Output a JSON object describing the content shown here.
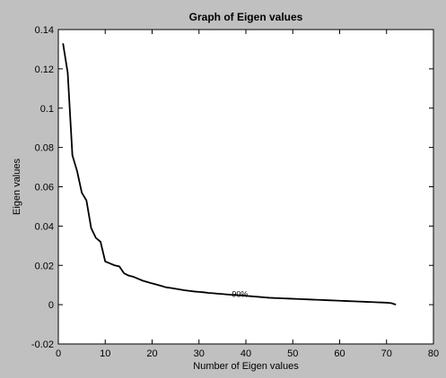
{
  "chart_data": {
    "type": "line",
    "title": "Graph of Eigen values",
    "xlabel": "Number of Eigen values",
    "ylabel": "Eigen values",
    "xlim": [
      0,
      80
    ],
    "ylim": [
      -0.02,
      0.14
    ],
    "x_ticks": [
      0,
      10,
      20,
      30,
      40,
      50,
      60,
      70,
      80
    ],
    "y_ticks": [
      -0.02,
      0,
      0.02,
      0.04,
      0.06,
      0.08,
      0.1,
      0.12,
      0.14
    ],
    "x_tick_labels": [
      "0",
      "10",
      "20",
      "30",
      "40",
      "50",
      "60",
      "70",
      "80"
    ],
    "y_tick_labels": [
      "-0.02",
      "0",
      "0.02",
      "0.04",
      "0.06",
      "0.08",
      "0.1",
      "0.12",
      "0.14"
    ],
    "grid": false,
    "series": [
      {
        "color": "#000000",
        "x": [
          1,
          2,
          3,
          4,
          5,
          6,
          7,
          8,
          9,
          10,
          11,
          12,
          13,
          14,
          15,
          16,
          17,
          18,
          19,
          20,
          21,
          22,
          23,
          24,
          25,
          26,
          27,
          28,
          29,
          30,
          31,
          32,
          33,
          34,
          35,
          36,
          37,
          38,
          39,
          40,
          41,
          42,
          43,
          44,
          45,
          46,
          47,
          48,
          49,
          50,
          51,
          52,
          53,
          54,
          55,
          56,
          57,
          58,
          59,
          60,
          61,
          62,
          63,
          64,
          65,
          66,
          67,
          68,
          69,
          70,
          71,
          72
        ],
        "y": [
          0.133,
          0.118,
          0.076,
          0.068,
          0.057,
          0.053,
          0.039,
          0.034,
          0.032,
          0.022,
          0.021,
          0.02,
          0.0195,
          0.016,
          0.0148,
          0.0142,
          0.0132,
          0.0122,
          0.0115,
          0.0108,
          0.0102,
          0.0095,
          0.0088,
          0.0085,
          0.0081,
          0.0077,
          0.0073,
          0.007,
          0.0067,
          0.0065,
          0.0063,
          0.006,
          0.0058,
          0.0056,
          0.0054,
          0.0052,
          0.005,
          0.0049,
          0.0047,
          0.0045,
          0.0043,
          0.0041,
          0.0039,
          0.0037,
          0.0035,
          0.0034,
          0.0033,
          0.0032,
          0.0031,
          0.003,
          0.0029,
          0.0028,
          0.0027,
          0.0026,
          0.0025,
          0.0024,
          0.0023,
          0.0022,
          0.0021,
          0.002,
          0.0019,
          0.0018,
          0.0017,
          0.0016,
          0.0015,
          0.0014,
          0.0013,
          0.0012,
          0.0011,
          0.001,
          0.0008,
          0.0
        ]
      }
    ],
    "annotations": [
      {
        "text": "90%",
        "x": 37,
        "y": 0.0053
      }
    ]
  },
  "colors": {
    "figure_background": "#c0c0c0",
    "plot_background": "#ffffff",
    "line": "#000000",
    "axes": "#000000"
  }
}
